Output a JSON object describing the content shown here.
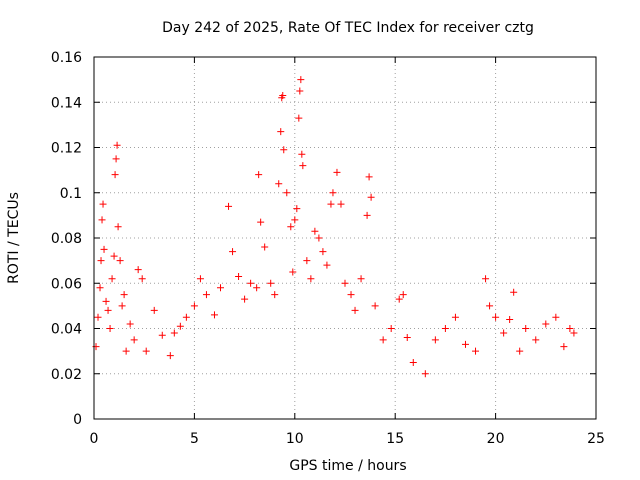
{
  "chart_data": {
    "type": "scatter",
    "title": "Day 242 of 2025, Rate Of TEC Index for receiver cztg",
    "xlabel": "GPS time / hours",
    "ylabel": "ROTI / TECUs",
    "xlim": [
      0,
      25
    ],
    "ylim": [
      0,
      0.16
    ],
    "x_ticks": [
      0,
      5,
      10,
      15,
      20,
      25
    ],
    "y_ticks": [
      0,
      0.02,
      0.04,
      0.06,
      0.08,
      0.1,
      0.12,
      0.14,
      0.16
    ],
    "x_tick_labels": [
      "0",
      "5",
      "10",
      "15",
      "20",
      "25"
    ],
    "y_tick_labels": [
      "0",
      "0.02",
      "0.04",
      "0.06",
      "0.08",
      "0.1",
      "0.12",
      "0.14",
      "0.16"
    ],
    "grid": true,
    "marker": "plus",
    "color": "#ff0000",
    "series": [
      {
        "points": [
          [
            0.1,
            0.032
          ],
          [
            0.2,
            0.045
          ],
          [
            0.3,
            0.058
          ],
          [
            0.35,
            0.07
          ],
          [
            0.4,
            0.088
          ],
          [
            0.45,
            0.095
          ],
          [
            0.5,
            0.075
          ],
          [
            0.6,
            0.052
          ],
          [
            0.7,
            0.048
          ],
          [
            0.8,
            0.04
          ],
          [
            0.9,
            0.062
          ],
          [
            1.0,
            0.072
          ],
          [
            1.05,
            0.108
          ],
          [
            1.1,
            0.115
          ],
          [
            1.15,
            0.121
          ],
          [
            1.2,
            0.085
          ],
          [
            1.3,
            0.07
          ],
          [
            1.4,
            0.05
          ],
          [
            1.5,
            0.055
          ],
          [
            1.6,
            0.03
          ],
          [
            1.8,
            0.042
          ],
          [
            2.0,
            0.035
          ],
          [
            2.2,
            0.066
          ],
          [
            2.4,
            0.062
          ],
          [
            2.6,
            0.03
          ],
          [
            3.0,
            0.048
          ],
          [
            3.4,
            0.037
          ],
          [
            3.8,
            0.028
          ],
          [
            4.0,
            0.038
          ],
          [
            4.3,
            0.041
          ],
          [
            4.6,
            0.045
          ],
          [
            5.0,
            0.05
          ],
          [
            5.3,
            0.062
          ],
          [
            5.6,
            0.055
          ],
          [
            6.0,
            0.046
          ],
          [
            6.3,
            0.058
          ],
          [
            6.7,
            0.094
          ],
          [
            6.9,
            0.074
          ],
          [
            7.2,
            0.063
          ],
          [
            7.5,
            0.053
          ],
          [
            7.8,
            0.06
          ],
          [
            8.1,
            0.058
          ],
          [
            8.2,
            0.108
          ],
          [
            8.3,
            0.087
          ],
          [
            8.5,
            0.076
          ],
          [
            8.8,
            0.06
          ],
          [
            9.0,
            0.055
          ],
          [
            9.2,
            0.104
          ],
          [
            9.3,
            0.127
          ],
          [
            9.35,
            0.142
          ],
          [
            9.4,
            0.143
          ],
          [
            9.45,
            0.119
          ],
          [
            9.6,
            0.1
          ],
          [
            9.8,
            0.085
          ],
          [
            9.9,
            0.065
          ],
          [
            10.0,
            0.088
          ],
          [
            10.1,
            0.093
          ],
          [
            10.2,
            0.133
          ],
          [
            10.25,
            0.145
          ],
          [
            10.3,
            0.15
          ],
          [
            10.35,
            0.117
          ],
          [
            10.4,
            0.112
          ],
          [
            10.6,
            0.07
          ],
          [
            10.8,
            0.062
          ],
          [
            11.0,
            0.083
          ],
          [
            11.2,
            0.08
          ],
          [
            11.4,
            0.074
          ],
          [
            11.6,
            0.068
          ],
          [
            11.8,
            0.095
          ],
          [
            11.9,
            0.1
          ],
          [
            12.1,
            0.109
          ],
          [
            12.3,
            0.095
          ],
          [
            12.5,
            0.06
          ],
          [
            12.8,
            0.055
          ],
          [
            13.0,
            0.048
          ],
          [
            13.3,
            0.062
          ],
          [
            13.6,
            0.09
          ],
          [
            13.7,
            0.107
          ],
          [
            13.8,
            0.098
          ],
          [
            14.0,
            0.05
          ],
          [
            14.4,
            0.035
          ],
          [
            14.8,
            0.04
          ],
          [
            15.2,
            0.053
          ],
          [
            15.4,
            0.055
          ],
          [
            15.6,
            0.036
          ],
          [
            15.9,
            0.025
          ],
          [
            16.5,
            0.02
          ],
          [
            17.0,
            0.035
          ],
          [
            17.5,
            0.04
          ],
          [
            18.0,
            0.045
          ],
          [
            18.5,
            0.033
          ],
          [
            19.0,
            0.03
          ],
          [
            19.5,
            0.062
          ],
          [
            19.7,
            0.05
          ],
          [
            20.0,
            0.045
          ],
          [
            20.4,
            0.038
          ],
          [
            20.7,
            0.044
          ],
          [
            20.9,
            0.056
          ],
          [
            21.2,
            0.03
          ],
          [
            21.5,
            0.04
          ],
          [
            22.0,
            0.035
          ],
          [
            22.5,
            0.042
          ],
          [
            23.0,
            0.045
          ],
          [
            23.4,
            0.032
          ],
          [
            23.7,
            0.04
          ],
          [
            23.9,
            0.038
          ]
        ]
      }
    ]
  }
}
